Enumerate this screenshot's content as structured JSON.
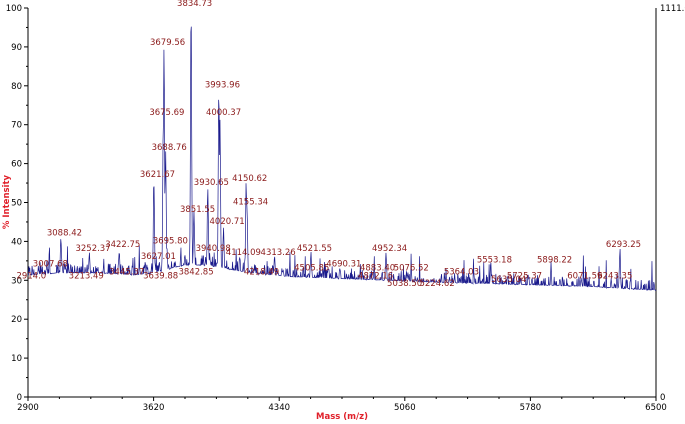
{
  "chart_data": {
    "type": "line",
    "title": "",
    "xlabel": "Mass (m/z)",
    "ylabel": "% Intensity",
    "xlim": [
      2900,
      6500
    ],
    "ylim": [
      0,
      100
    ],
    "x_ticks": [
      2900,
      3620,
      4340,
      5060,
      5780,
      6500
    ],
    "y_ticks": [
      0,
      10,
      20,
      30,
      40,
      50,
      60,
      70,
      80,
      90,
      100
    ],
    "right_axis_top": "1111.0",
    "right_axis_bottom": "0",
    "grid": false,
    "series_color": "#1a1a8c",
    "label_color": "#8b1a1a",
    "baseline": [
      [
        2900,
        30.5
      ],
      [
        3100,
        31.0
      ],
      [
        3300,
        31.0
      ],
      [
        3500,
        30.5
      ],
      [
        3600,
        30.8
      ],
      [
        3700,
        32.0
      ],
      [
        3800,
        33.0
      ],
      [
        3900,
        33.0
      ],
      [
        4000,
        32.5
      ],
      [
        4100,
        31.5
      ],
      [
        4200,
        31.0
      ],
      [
        4400,
        30.0
      ],
      [
        4700,
        29.5
      ],
      [
        5000,
        29.0
      ],
      [
        5300,
        28.5
      ],
      [
        5700,
        28.0
      ],
      [
        6100,
        27.5
      ],
      [
        6500,
        26.5
      ]
    ],
    "peaks": [
      {
        "mz": 2914.0,
        "y": 30,
        "label": "2914.0"
      },
      {
        "mz": 3007.68,
        "y": 33,
        "label": "3007.68"
      },
      {
        "mz": 3088.42,
        "y": 41,
        "label": "3088.42"
      },
      {
        "mz": 3213.49,
        "y": 30,
        "label": "3213.49"
      },
      {
        "mz": 3252.37,
        "y": 37,
        "label": "3252.37"
      },
      {
        "mz": 3422.75,
        "y": 38,
        "label": "3422.75"
      },
      {
        "mz": 3445.37,
        "y": 31,
        "label": "3445.37"
      },
      {
        "mz": 3621.67,
        "y": 56,
        "label": "3621.67"
      },
      {
        "mz": 3627.01,
        "y": 35,
        "label": "3627.01"
      },
      {
        "mz": 3639.88,
        "y": 30,
        "label": "3639.88"
      },
      {
        "mz": 3675.69,
        "y": 72,
        "label": "3675.69"
      },
      {
        "mz": 3679.56,
        "y": 90,
        "label": "3679.56"
      },
      {
        "mz": 3688.76,
        "y": 63,
        "label": "3688.76"
      },
      {
        "mz": 3695.8,
        "y": 39,
        "label": "3695.80"
      },
      {
        "mz": 3834.73,
        "y": 100,
        "label": "3834.73"
      },
      {
        "mz": 3842.85,
        "y": 31,
        "label": "3842.85"
      },
      {
        "mz": 3851.55,
        "y": 47,
        "label": "3851.55"
      },
      {
        "mz": 3930.65,
        "y": 54,
        "label": "3930.65"
      },
      {
        "mz": 3940.98,
        "y": 37,
        "label": "3940.98"
      },
      {
        "mz": 3993.96,
        "y": 79,
        "label": "3993.96"
      },
      {
        "mz": 4000.37,
        "y": 72,
        "label": "4000.37"
      },
      {
        "mz": 4020.71,
        "y": 44,
        "label": "4020.71"
      },
      {
        "mz": 4114.09,
        "y": 36,
        "label": "4114.09"
      },
      {
        "mz": 4150.62,
        "y": 55,
        "label": "4150.62"
      },
      {
        "mz": 4155.34,
        "y": 49,
        "label": "4155.34"
      },
      {
        "mz": 4218.49,
        "y": 31,
        "label": "4218.49"
      },
      {
        "mz": 4313.26,
        "y": 36,
        "label": "4313.26"
      },
      {
        "mz": 4505.85,
        "y": 32,
        "label": "4505.85"
      },
      {
        "mz": 4521.55,
        "y": 37,
        "label": "4521.55"
      },
      {
        "mz": 4690.31,
        "y": 33,
        "label": "4690.31"
      },
      {
        "mz": 4872.16,
        "y": 30,
        "label": "4872.16"
      },
      {
        "mz": 4883.4,
        "y": 32,
        "label": "4883.40"
      },
      {
        "mz": 4952.34,
        "y": 37,
        "label": "4952.34"
      },
      {
        "mz": 5038.5,
        "y": 28,
        "label": "5038.50"
      },
      {
        "mz": 5076.52,
        "y": 32,
        "label": "5076.52"
      },
      {
        "mz": 5224.62,
        "y": 28,
        "label": "5224.62"
      },
      {
        "mz": 5364.03,
        "y": 31,
        "label": "5364.03"
      },
      {
        "mz": 5553.18,
        "y": 34,
        "label": "5553.18"
      },
      {
        "mz": 5635.04,
        "y": 29,
        "label": "5635.04"
      },
      {
        "mz": 5725.37,
        "y": 30,
        "label": "5725.37"
      },
      {
        "mz": 5898.22,
        "y": 34,
        "label": "5898.22"
      },
      {
        "mz": 6071.59,
        "y": 30,
        "label": "6071.59"
      },
      {
        "mz": 6243.35,
        "y": 30,
        "label": "6243.35"
      },
      {
        "mz": 6293.25,
        "y": 38,
        "label": "6293.25"
      }
    ]
  }
}
